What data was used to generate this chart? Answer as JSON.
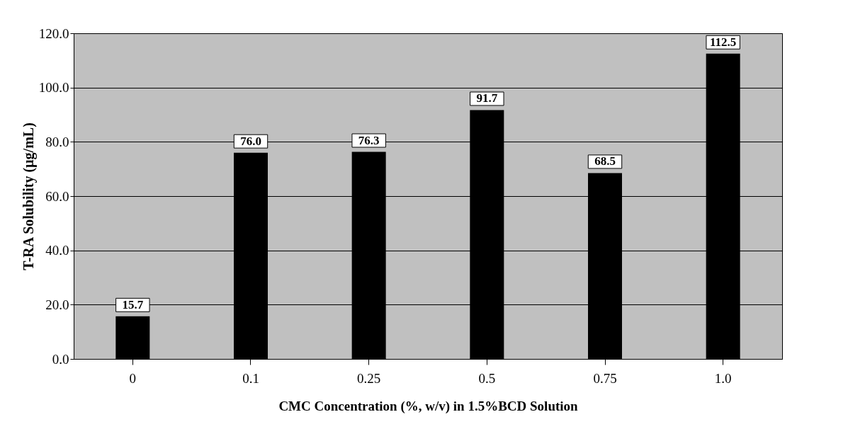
{
  "chart_data": {
    "type": "bar",
    "xlabel": "CMC Concentration (%, w/v)  in 1.5%BCD Solution",
    "ylabel": "T-RA Solubility (µg/mL)",
    "categories": [
      "0",
      "0.1",
      "0.25",
      "0.5",
      "0.75",
      "1.0"
    ],
    "values": [
      15.7,
      76.0,
      76.3,
      91.7,
      68.5,
      112.5
    ],
    "value_labels": [
      "15.7",
      "76.0",
      "76.3",
      "91.7",
      "68.5",
      "112.5"
    ],
    "color": "#000000",
    "ylim": [
      0,
      120
    ],
    "yticks": [
      {
        "value": 0,
        "label": "0.0"
      },
      {
        "value": 20,
        "label": "20.0"
      },
      {
        "value": 40,
        "label": "40.0"
      },
      {
        "value": 60,
        "label": "60.0"
      },
      {
        "value": 80,
        "label": "80.0"
      },
      {
        "value": 100,
        "label": "100.0"
      },
      {
        "value": 120,
        "label": "120.0"
      }
    ],
    "grid": "y"
  }
}
